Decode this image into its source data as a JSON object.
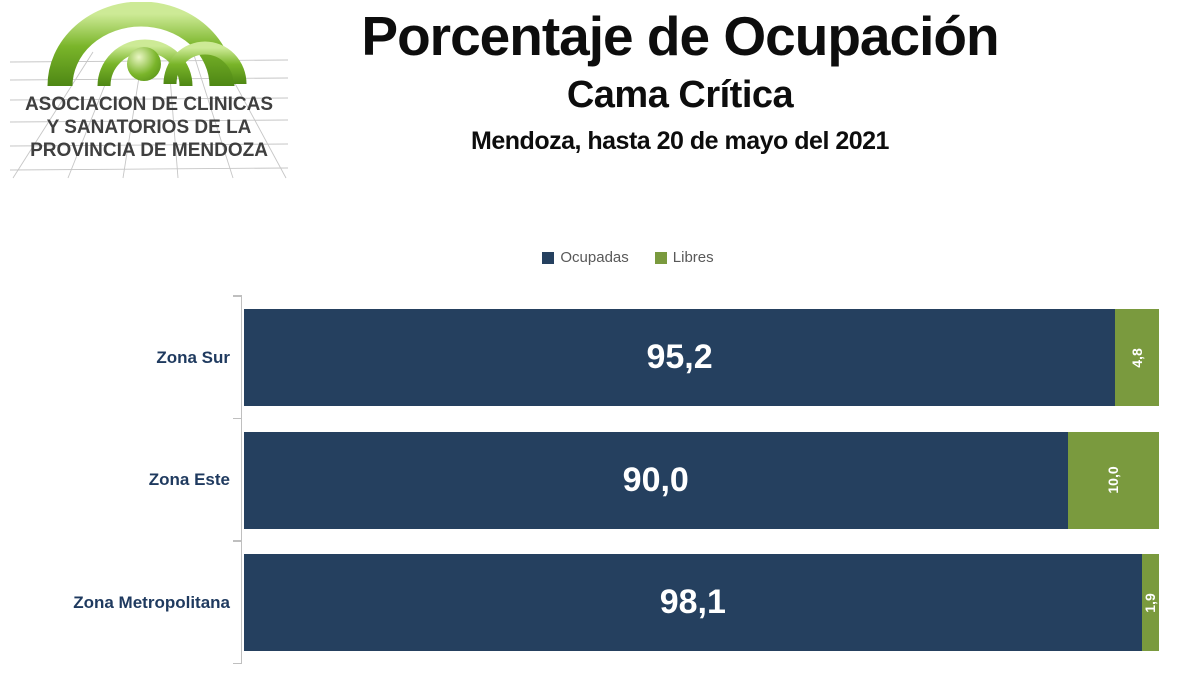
{
  "logo": {
    "lines": [
      "ASOCIACION DE CLINICAS",
      "Y SANATORIOS DE LA",
      "PROVINCIA DE MENDOZA"
    ]
  },
  "header": {
    "title": "Porcentaje de Ocupación",
    "subtitle": "Cama Crítica",
    "caption": "Mendoza, hasta 20 de mayo del 2021"
  },
  "chart_data": {
    "type": "bar",
    "orientation": "horizontal",
    "stacked": true,
    "title": "Porcentaje de Ocupación Cama Crítica",
    "categories": [
      "Zona Sur",
      "Zona Este",
      "Zona Metropolitana"
    ],
    "series": [
      {
        "name": "Ocupadas",
        "color": "#25405F",
        "values": [
          95.2,
          90.0,
          98.1
        ],
        "labels": [
          "95,2",
          "90,0",
          "98,1"
        ]
      },
      {
        "name": "Libres",
        "color": "#7A9A3E",
        "values": [
          4.8,
          10.0,
          1.9
        ],
        "labels": [
          "4,8",
          "10,0",
          "1,9"
        ]
      }
    ],
    "xlim": [
      0,
      100
    ],
    "xlabel": "",
    "ylabel": "",
    "grid": false,
    "legend_position": "top-center",
    "value_label_style": {
      "occupied": "horizontal-white-bold",
      "free": "rotated-90-white-bold"
    },
    "axis_color": "#bfbfbf",
    "category_label_color": "#1f3a5f"
  }
}
